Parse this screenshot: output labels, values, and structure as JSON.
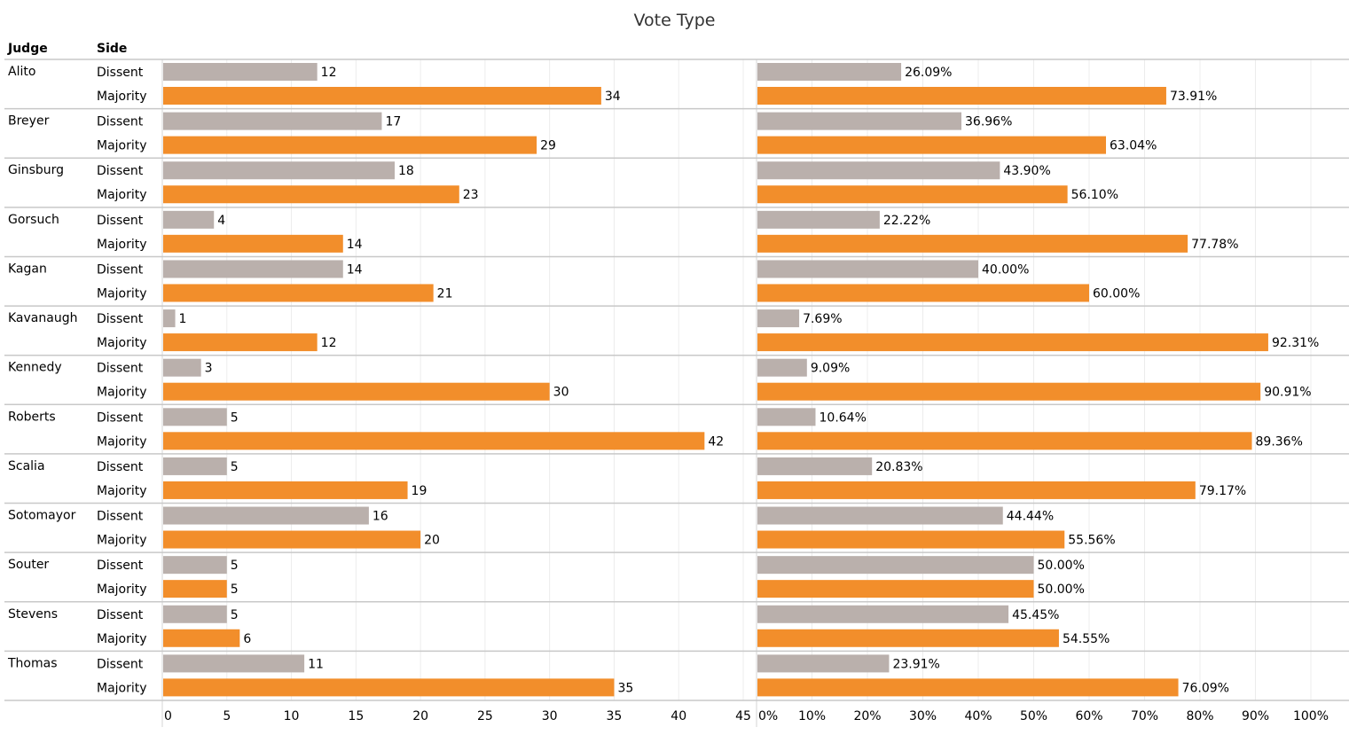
{
  "chart_data": {
    "type": "bar",
    "title": "Vote Type",
    "row_headers": [
      "Judge",
      "Side"
    ],
    "categories": [
      "Alito",
      "Breyer",
      "Ginsburg",
      "Gorsuch",
      "Kagan",
      "Kavanaugh",
      "Kennedy",
      "Roberts",
      "Scalia",
      "Sotomayor",
      "Souter",
      "Stevens",
      "Thomas"
    ],
    "sides": [
      "Dissent",
      "Majority"
    ],
    "colors": {
      "Dissent": "#bab0ac",
      "Majority": "#f28e2b"
    },
    "panels": [
      {
        "name": "count",
        "xlim": [
          0,
          45
        ],
        "ticks": [
          0,
          5,
          10,
          15,
          20,
          25,
          30,
          35,
          40,
          45
        ],
        "tick_labels": [
          "0",
          "5",
          "10",
          "15",
          "20",
          "25",
          "30",
          "35",
          "40",
          "45"
        ],
        "series": [
          {
            "name": "Dissent",
            "values": [
              12,
              17,
              18,
              4,
              14,
              1,
              3,
              5,
              5,
              16,
              5,
              5,
              11
            ],
            "labels": [
              "12",
              "17",
              "18",
              "4",
              "14",
              "1",
              "3",
              "5",
              "5",
              "16",
              "5",
              "5",
              "11"
            ]
          },
          {
            "name": "Majority",
            "values": [
              34,
              29,
              23,
              14,
              21,
              12,
              30,
              42,
              19,
              20,
              5,
              6,
              35
            ],
            "labels": [
              "34",
              "29",
              "23",
              "14",
              "21",
              "12",
              "30",
              "42",
              "19",
              "20",
              "5",
              "6",
              "35"
            ]
          }
        ]
      },
      {
        "name": "percent",
        "xlim": [
          0,
          100
        ],
        "ticks": [
          0,
          10,
          20,
          30,
          40,
          50,
          60,
          70,
          80,
          90,
          100
        ],
        "tick_labels": [
          "0%",
          "10%",
          "20%",
          "30%",
          "40%",
          "50%",
          "60%",
          "70%",
          "80%",
          "90%",
          "100%"
        ],
        "series": [
          {
            "name": "Dissent",
            "values": [
              26.09,
              36.96,
              43.9,
              22.22,
              40.0,
              7.69,
              9.09,
              10.64,
              20.83,
              44.44,
              50.0,
              45.45,
              23.91
            ],
            "labels": [
              "26.09%",
              "36.96%",
              "43.90%",
              "22.22%",
              "40.00%",
              "7.69%",
              "9.09%",
              "10.64%",
              "20.83%",
              "44.44%",
              "50.00%",
              "45.45%",
              "23.91%"
            ]
          },
          {
            "name": "Majority",
            "values": [
              73.91,
              63.04,
              56.1,
              77.78,
              60.0,
              92.31,
              90.91,
              89.36,
              79.17,
              55.56,
              50.0,
              54.55,
              76.09
            ],
            "labels": [
              "73.91%",
              "63.04%",
              "56.10%",
              "77.78%",
              "60.00%",
              "92.31%",
              "90.91%",
              "89.36%",
              "79.17%",
              "55.56%",
              "50.00%",
              "54.55%",
              "76.09%"
            ]
          }
        ]
      }
    ],
    "grid": true,
    "legend": "none"
  }
}
